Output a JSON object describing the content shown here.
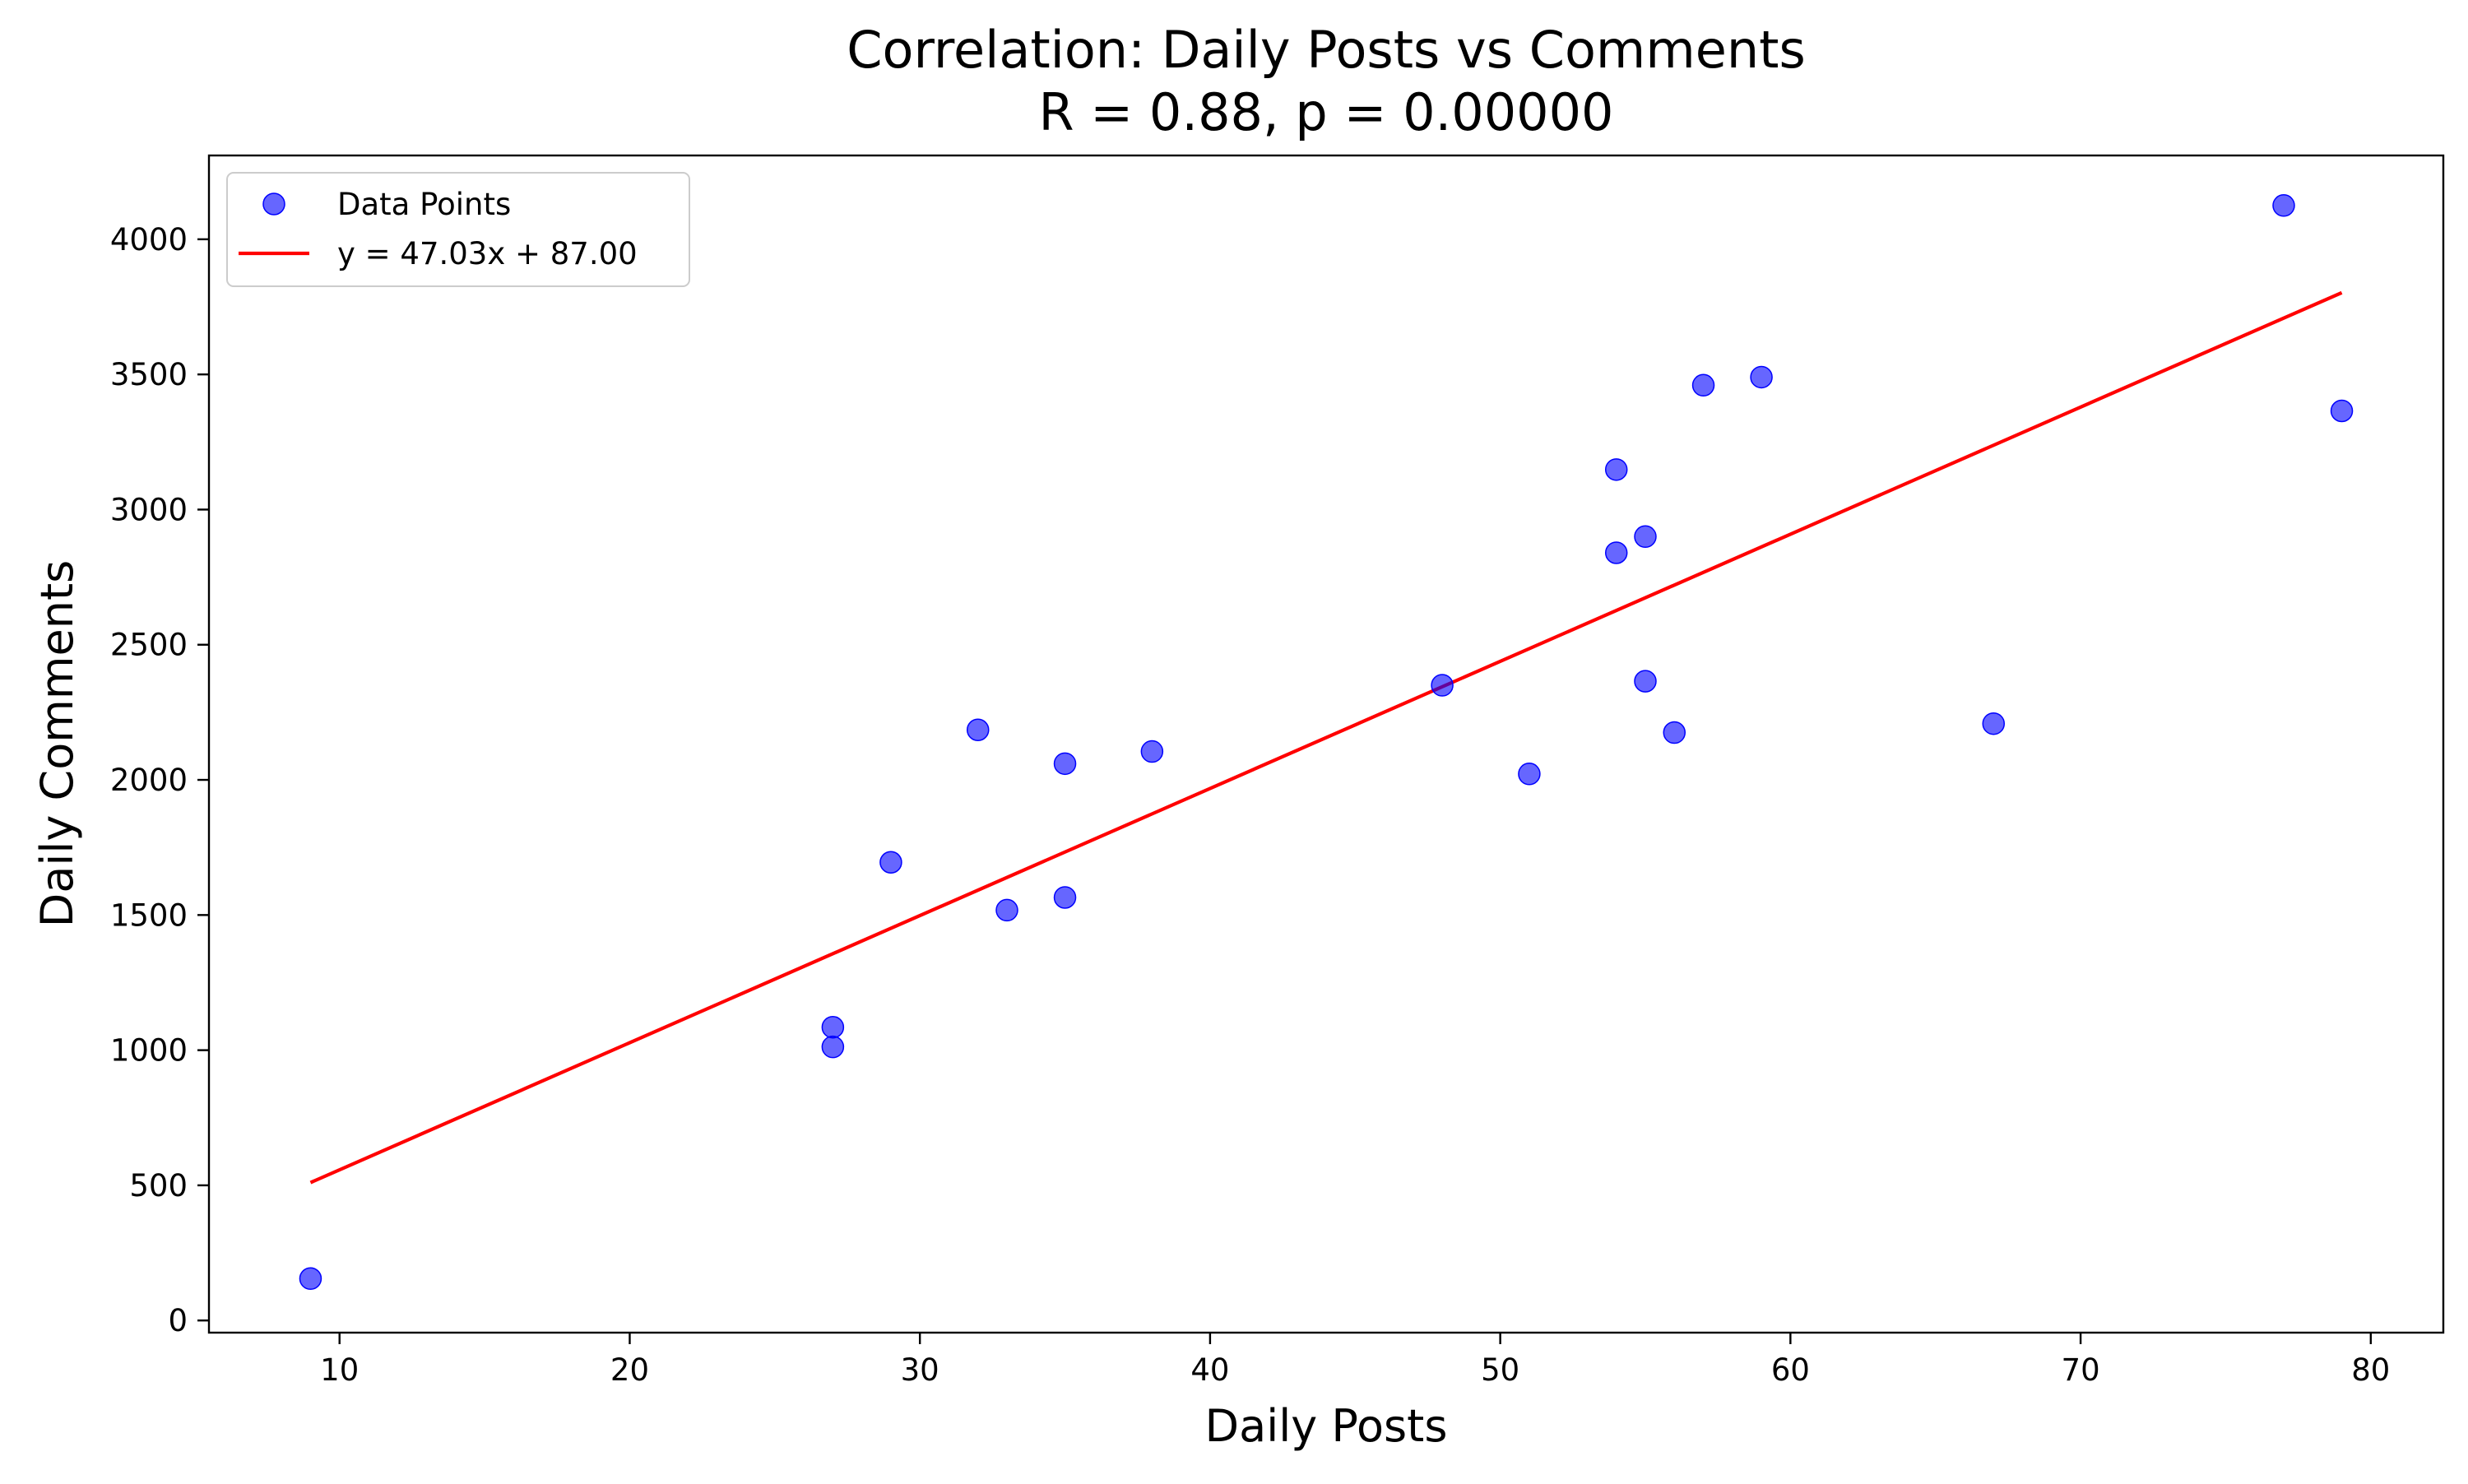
{
  "chart_data": {
    "type": "scatter",
    "title": "Correlation: Daily Posts vs Comments",
    "subtitle": "R = 0.88, p = 0.00000",
    "xlabel": "Daily Posts",
    "ylabel": "Daily Comments",
    "xlim": [
      5.5,
      82.5
    ],
    "ylim": [
      -45,
      4310
    ],
    "xticks": [
      10,
      20,
      30,
      40,
      50,
      60,
      70,
      80
    ],
    "yticks": [
      0,
      500,
      1000,
      1500,
      2000,
      2500,
      3000,
      3500,
      4000
    ],
    "grid": false,
    "legend_position": "top-left",
    "series": [
      {
        "name": "Data Points",
        "kind": "scatter",
        "color": "#0000ff",
        "points": [
          {
            "x": 9,
            "y": 155
          },
          {
            "x": 27,
            "y": 1085
          },
          {
            "x": 27,
            "y": 1012
          },
          {
            "x": 29,
            "y": 1695
          },
          {
            "x": 32,
            "y": 2185
          },
          {
            "x": 33,
            "y": 1518
          },
          {
            "x": 35,
            "y": 2060
          },
          {
            "x": 35,
            "y": 1565
          },
          {
            "x": 38,
            "y": 2105
          },
          {
            "x": 48,
            "y": 2350
          },
          {
            "x": 51,
            "y": 2022
          },
          {
            "x": 54,
            "y": 3148
          },
          {
            "x": 54,
            "y": 2840
          },
          {
            "x": 55,
            "y": 2900
          },
          {
            "x": 55,
            "y": 2365
          },
          {
            "x": 56,
            "y": 2175
          },
          {
            "x": 57,
            "y": 3460
          },
          {
            "x": 59,
            "y": 3490
          },
          {
            "x": 67,
            "y": 2208
          },
          {
            "x": 77,
            "y": 4125
          },
          {
            "x": 79,
            "y": 3365
          }
        ]
      },
      {
        "name": "y = 47.03x + 87.00",
        "kind": "line",
        "color": "#ff0000",
        "slope": 47.03,
        "intercept": 87.0,
        "x_range": [
          9,
          79
        ]
      }
    ]
  }
}
